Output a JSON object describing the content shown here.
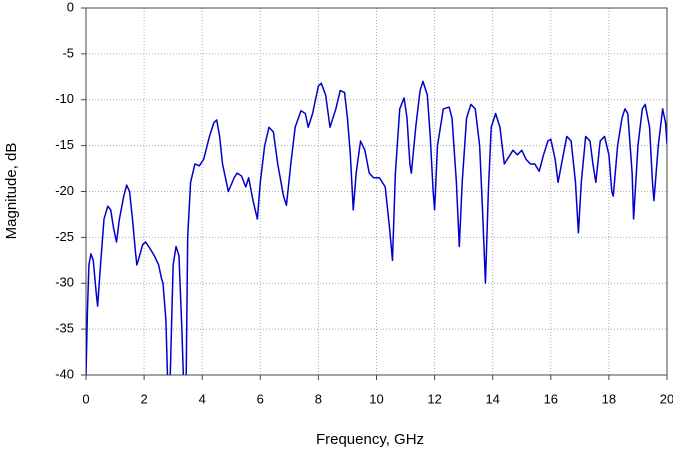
{
  "chart_data": {
    "type": "line",
    "x_label": "Frequency, GHz",
    "y_label": "Magnitude, dB",
    "xlim": [
      0,
      20
    ],
    "xticks": [
      0,
      2,
      4,
      6,
      8,
      10,
      12,
      14,
      16,
      18,
      20
    ],
    "ylim": [
      -40,
      0
    ],
    "yticks": [
      -40,
      -35,
      -30,
      -25,
      -20,
      -15,
      -10,
      -5,
      0
    ],
    "grid": true,
    "x": [
      0,
      0.05,
      0.1,
      0.17,
      0.25,
      0.35,
      0.4,
      0.5,
      0.62,
      0.75,
      0.85,
      0.95,
      1.05,
      1.15,
      1.3,
      1.4,
      1.5,
      1.6,
      1.7,
      1.75,
      1.8,
      1.95,
      2.05,
      2.2,
      2.35,
      2.5,
      2.6,
      2.65,
      2.75,
      2.85,
      2.9,
      3.0,
      3.1,
      3.2,
      3.3,
      3.4,
      3.45,
      3.5,
      3.6,
      3.75,
      3.9,
      4.05,
      4.25,
      4.4,
      4.5,
      4.6,
      4.7,
      4.8,
      4.9,
      5.1,
      5.2,
      5.35,
      5.5,
      5.6,
      5.75,
      5.9,
      6.0,
      6.15,
      6.3,
      6.45,
      6.6,
      6.8,
      6.9,
      7.05,
      7.2,
      7.4,
      7.55,
      7.65,
      7.8,
      8.0,
      8.1,
      8.25,
      8.4,
      8.6,
      8.75,
      8.9,
      9.0,
      9.1,
      9.2,
      9.3,
      9.45,
      9.6,
      9.75,
      9.9,
      10.1,
      10.3,
      10.45,
      10.55,
      10.65,
      10.8,
      10.95,
      11.05,
      11.15,
      11.2,
      11.35,
      11.5,
      11.6,
      11.75,
      11.85,
      11.95,
      12.0,
      12.1,
      12.3,
      12.5,
      12.6,
      12.75,
      12.85,
      12.95,
      13.1,
      13.25,
      13.4,
      13.55,
      13.65,
      13.75,
      13.85,
      13.95,
      14.1,
      14.25,
      14.4,
      14.5,
      14.7,
      14.85,
      15.0,
      15.15,
      15.3,
      15.45,
      15.6,
      15.75,
      15.9,
      16.0,
      16.15,
      16.25,
      16.4,
      16.55,
      16.7,
      16.85,
      16.95,
      17.05,
      17.2,
      17.35,
      17.45,
      17.55,
      17.7,
      17.85,
      18.0,
      18.1,
      18.15,
      18.3,
      18.45,
      18.55,
      18.65,
      18.8,
      18.85,
      19.0,
      19.15,
      19.25,
      19.4,
      19.5,
      19.55,
      19.7,
      19.85,
      19.95,
      20.0
    ],
    "series": [
      {
        "color": "#0000cc",
        "values": [
          -40,
          -33,
          -28,
          -26.8,
          -27.5,
          -31,
          -32.5,
          -28,
          -23,
          -21.6,
          -22,
          -24,
          -25.5,
          -23,
          -20.5,
          -19.3,
          -20,
          -23,
          -26.5,
          -28,
          -27.5,
          -25.8,
          -25.5,
          -26.2,
          -27,
          -28,
          -29.5,
          -30,
          -34,
          -45,
          -40,
          -28,
          -26,
          -27,
          -35,
          -45,
          -40,
          -25,
          -19,
          -17,
          -17.2,
          -16.5,
          -14,
          -12.5,
          -12.2,
          -14,
          -17,
          -18.5,
          -20,
          -18.5,
          -18,
          -18.3,
          -19.5,
          -18.5,
          -21,
          -23,
          -19,
          -15,
          -13,
          -13.5,
          -17,
          -20.5,
          -21.5,
          -17,
          -13,
          -11.2,
          -11.5,
          -13,
          -11.5,
          -8.5,
          -8.2,
          -9.5,
          -13,
          -11,
          -9,
          -9.2,
          -12,
          -16,
          -22,
          -18,
          -14.5,
          -15.5,
          -18,
          -18.5,
          -18.5,
          -19.5,
          -24,
          -27.5,
          -18,
          -11,
          -9.8,
          -12,
          -17,
          -18,
          -13,
          -9,
          -8,
          -9.5,
          -14,
          -20,
          -22,
          -15,
          -11,
          -10.8,
          -12,
          -19,
          -26,
          -19,
          -12,
          -10.5,
          -11,
          -15,
          -22,
          -30,
          -20,
          -13,
          -11.5,
          -13,
          -17,
          -16.5,
          -15.5,
          -16,
          -15.5,
          -16.5,
          -17,
          -17,
          -17.8,
          -16,
          -14.5,
          -14.3,
          -16.5,
          -19,
          -16.5,
          -14,
          -14.5,
          -19,
          -24.5,
          -19,
          -14,
          -14.5,
          -17,
          -19,
          -14.5,
          -14,
          -16,
          -20,
          -20.5,
          -15,
          -12,
          -11,
          -11.5,
          -18,
          -23,
          -15,
          -11,
          -10.5,
          -13,
          -19,
          -21,
          -15,
          -11,
          -12.5,
          -14.8
        ]
      }
    ]
  }
}
